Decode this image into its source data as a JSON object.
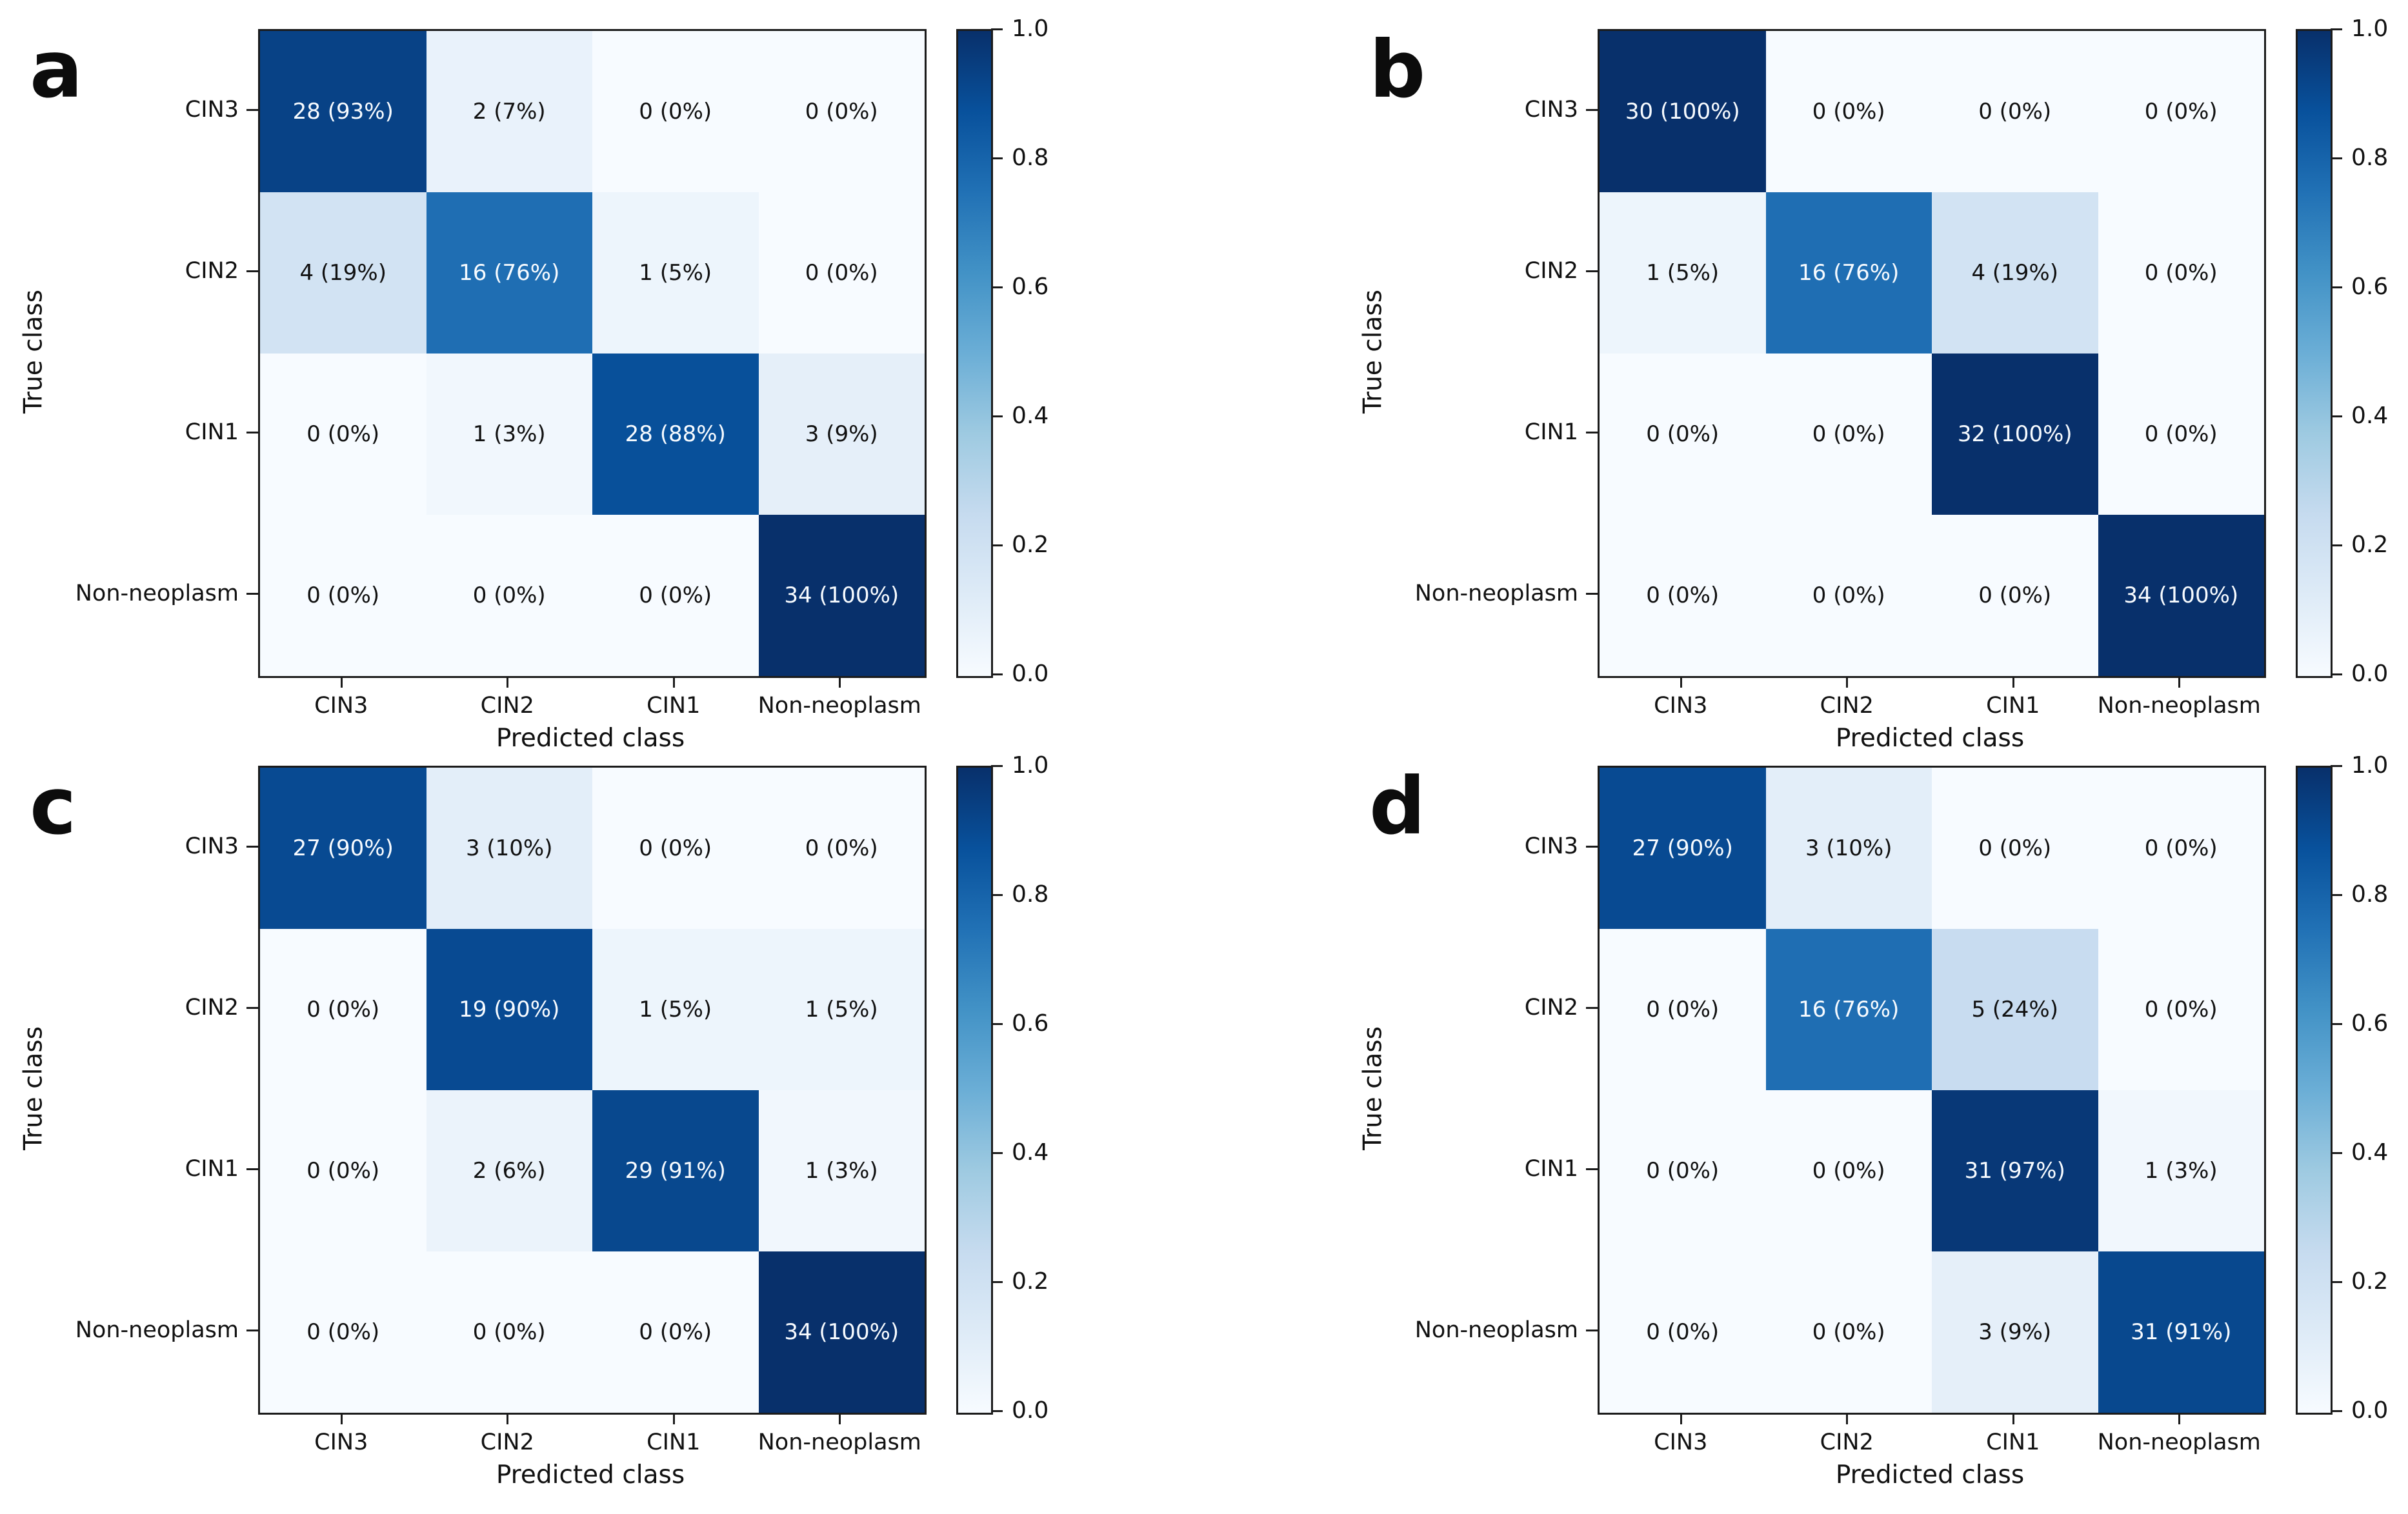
{
  "figure": {
    "panels": [
      "a",
      "b",
      "c",
      "d"
    ],
    "xlabel": "Predicted class",
    "ylabel": "True class",
    "classes": [
      "CIN3",
      "CIN2",
      "CIN1",
      "Non-neoplasm"
    ],
    "colorbar_tick_labels": [
      "1.0",
      "0.8",
      "0.6",
      "0.4",
      "0.2",
      "0.0"
    ],
    "colors": {
      "colormap_min": "#f7fbff",
      "colormap_max": "#08306b",
      "dark_cell_text": "#111111",
      "light_cell_text": "#f7fbff",
      "axis_text": "#111111",
      "spine": "#1b1b1b"
    }
  },
  "chart_data": [
    {
      "type": "heatmap",
      "panel_label": "a",
      "xlabel": "Predicted class",
      "ylabel": "True class",
      "x_categories": [
        "CIN3",
        "CIN2",
        "CIN1",
        "Non-neoplasm"
      ],
      "y_categories": [
        "CIN3",
        "CIN2",
        "CIN1",
        "Non-neoplasm"
      ],
      "counts": [
        [
          28,
          2,
          0,
          0
        ],
        [
          4,
          16,
          1,
          0
        ],
        [
          0,
          1,
          28,
          3
        ],
        [
          0,
          0,
          0,
          34
        ]
      ],
      "row_percents": [
        [
          93,
          7,
          0,
          0
        ],
        [
          19,
          76,
          5,
          0
        ],
        [
          0,
          3,
          88,
          9
        ],
        [
          0,
          0,
          0,
          100
        ]
      ],
      "cell_labels": [
        [
          "28 (93%)",
          "2 (7%)",
          "0 (0%)",
          "0 (0%)"
        ],
        [
          "4 (19%)",
          "16 (76%)",
          "1 (5%)",
          "0 (0%)"
        ],
        [
          "0 (0%)",
          "1 (3%)",
          "28 (88%)",
          "3 (9%)"
        ],
        [
          "0 (0%)",
          "0 (0%)",
          "0 (0%)",
          "34 (100%)"
        ]
      ],
      "colormap": "Blues",
      "value_range": [
        0.0,
        1.0
      ],
      "colorbar_ticks": [
        "1.0",
        "0.8",
        "0.6",
        "0.4",
        "0.2",
        "0.0"
      ],
      "legend_position": "right-colorbar"
    },
    {
      "type": "heatmap",
      "panel_label": "b",
      "xlabel": "Predicted class",
      "ylabel": "True class",
      "x_categories": [
        "CIN3",
        "CIN2",
        "CIN1",
        "Non-neoplasm"
      ],
      "y_categories": [
        "CIN3",
        "CIN2",
        "CIN1",
        "Non-neoplasm"
      ],
      "counts": [
        [
          30,
          0,
          0,
          0
        ],
        [
          1,
          16,
          4,
          0
        ],
        [
          0,
          0,
          32,
          0
        ],
        [
          0,
          0,
          0,
          34
        ]
      ],
      "row_percents": [
        [
          100,
          0,
          0,
          0
        ],
        [
          5,
          76,
          19,
          0
        ],
        [
          0,
          0,
          100,
          0
        ],
        [
          0,
          0,
          0,
          100
        ]
      ],
      "cell_labels": [
        [
          "30 (100%)",
          "0 (0%)",
          "0 (0%)",
          "0 (0%)"
        ],
        [
          "1 (5%)",
          "16 (76%)",
          "4 (19%)",
          "0 (0%)"
        ],
        [
          "0 (0%)",
          "0 (0%)",
          "32 (100%)",
          "0 (0%)"
        ],
        [
          "0 (0%)",
          "0 (0%)",
          "0 (0%)",
          "34 (100%)"
        ]
      ],
      "colormap": "Blues",
      "value_range": [
        0.0,
        1.0
      ],
      "colorbar_ticks": [
        "1.0",
        "0.8",
        "0.6",
        "0.4",
        "0.2",
        "0.0"
      ],
      "legend_position": "right-colorbar"
    },
    {
      "type": "heatmap",
      "panel_label": "c",
      "xlabel": "Predicted class",
      "ylabel": "True class",
      "x_categories": [
        "CIN3",
        "CIN2",
        "CIN1",
        "Non-neoplasm"
      ],
      "y_categories": [
        "CIN3",
        "CIN2",
        "CIN1",
        "Non-neoplasm"
      ],
      "counts": [
        [
          27,
          3,
          0,
          0
        ],
        [
          0,
          19,
          1,
          1
        ],
        [
          0,
          2,
          29,
          1
        ],
        [
          0,
          0,
          0,
          34
        ]
      ],
      "row_percents": [
        [
          90,
          10,
          0,
          0
        ],
        [
          0,
          90,
          5,
          5
        ],
        [
          0,
          6,
          91,
          3
        ],
        [
          0,
          0,
          0,
          100
        ]
      ],
      "cell_labels": [
        [
          "27 (90%)",
          "3 (10%)",
          "0 (0%)",
          "0 (0%)"
        ],
        [
          "0 (0%)",
          "19 (90%)",
          "1 (5%)",
          "1 (5%)"
        ],
        [
          "0 (0%)",
          "2 (6%)",
          "29 (91%)",
          "1 (3%)"
        ],
        [
          "0 (0%)",
          "0 (0%)",
          "0 (0%)",
          "34 (100%)"
        ]
      ],
      "colormap": "Blues",
      "value_range": [
        0.0,
        1.0
      ],
      "colorbar_ticks": [
        "1.0",
        "0.8",
        "0.6",
        "0.4",
        "0.2",
        "0.0"
      ],
      "legend_position": "right-colorbar"
    },
    {
      "type": "heatmap",
      "panel_label": "d",
      "xlabel": "Predicted class",
      "ylabel": "True class",
      "x_categories": [
        "CIN3",
        "CIN2",
        "CIN1",
        "Non-neoplasm"
      ],
      "y_categories": [
        "CIN3",
        "CIN2",
        "CIN1",
        "Non-neoplasm"
      ],
      "counts": [
        [
          27,
          3,
          0,
          0
        ],
        [
          0,
          16,
          5,
          0
        ],
        [
          0,
          0,
          31,
          1
        ],
        [
          0,
          0,
          3,
          31
        ]
      ],
      "row_percents": [
        [
          90,
          10,
          0,
          0
        ],
        [
          0,
          76,
          24,
          0
        ],
        [
          0,
          0,
          97,
          3
        ],
        [
          0,
          0,
          9,
          91
        ]
      ],
      "cell_labels": [
        [
          "27 (90%)",
          "3 (10%)",
          "0 (0%)",
          "0 (0%)"
        ],
        [
          "0 (0%)",
          "16 (76%)",
          "5 (24%)",
          "0 (0%)"
        ],
        [
          "0 (0%)",
          "0 (0%)",
          "31 (97%)",
          "1 (3%)"
        ],
        [
          "0 (0%)",
          "0 (0%)",
          "3 (9%)",
          "31 (91%)"
        ]
      ],
      "colormap": "Blues",
      "value_range": [
        0.0,
        1.0
      ],
      "colorbar_ticks": [
        "1.0",
        "0.8",
        "0.6",
        "0.4",
        "0.2",
        "0.0"
      ],
      "legend_position": "right-colorbar"
    }
  ]
}
